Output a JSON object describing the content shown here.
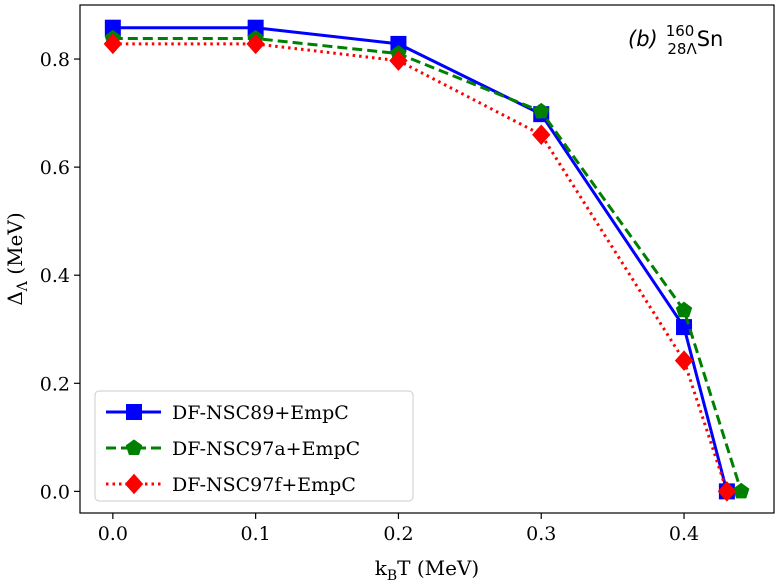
{
  "chart_data": {
    "type": "line",
    "title": "",
    "annotation": {
      "label": "(b)",
      "mass_number": "160",
      "sub": "28Λ",
      "element": "Sn"
    },
    "xlabel": {
      "main": "k",
      "sub": "B",
      "rest": "T (MeV)"
    },
    "ylabel": {
      "main": "Δ",
      "sub": "Λ",
      "rest": " (MeV)"
    },
    "xlim": [
      -0.023,
      0.463
    ],
    "ylim": [
      -0.04,
      0.9
    ],
    "xticks": [
      0.0,
      0.1,
      0.2,
      0.3,
      0.4
    ],
    "xtick_labels": [
      "0.0",
      "0.1",
      "0.2",
      "0.3",
      "0.4"
    ],
    "yticks": [
      0.0,
      0.2,
      0.4,
      0.6,
      0.8
    ],
    "ytick_labels": [
      "0.0",
      "0.2",
      "0.4",
      "0.6",
      "0.8"
    ],
    "grid": false,
    "legend_position": "lower-left",
    "series": [
      {
        "name": "DF-NSC89+EmpC",
        "color": "#0000ff",
        "line_style": "solid",
        "marker": "square",
        "x": [
          0.0,
          0.1,
          0.2,
          0.3,
          0.4,
          0.43
        ],
        "y": [
          0.858,
          0.858,
          0.828,
          0.698,
          0.304,
          0.0
        ]
      },
      {
        "name": "DF-NSC97a+EmpC",
        "color": "#008000",
        "line_style": "dashed",
        "marker": "pentagon",
        "x": [
          0.0,
          0.1,
          0.2,
          0.3,
          0.4,
          0.44
        ],
        "y": [
          0.838,
          0.838,
          0.81,
          0.703,
          0.335,
          0.0
        ]
      },
      {
        "name": "DF-NSC97f+EmpC",
        "color": "#ff0000",
        "line_style": "dotted",
        "marker": "diamond",
        "x": [
          0.0,
          0.1,
          0.2,
          0.3,
          0.4,
          0.43
        ],
        "y": [
          0.828,
          0.828,
          0.797,
          0.66,
          0.242,
          0.0
        ]
      }
    ]
  }
}
